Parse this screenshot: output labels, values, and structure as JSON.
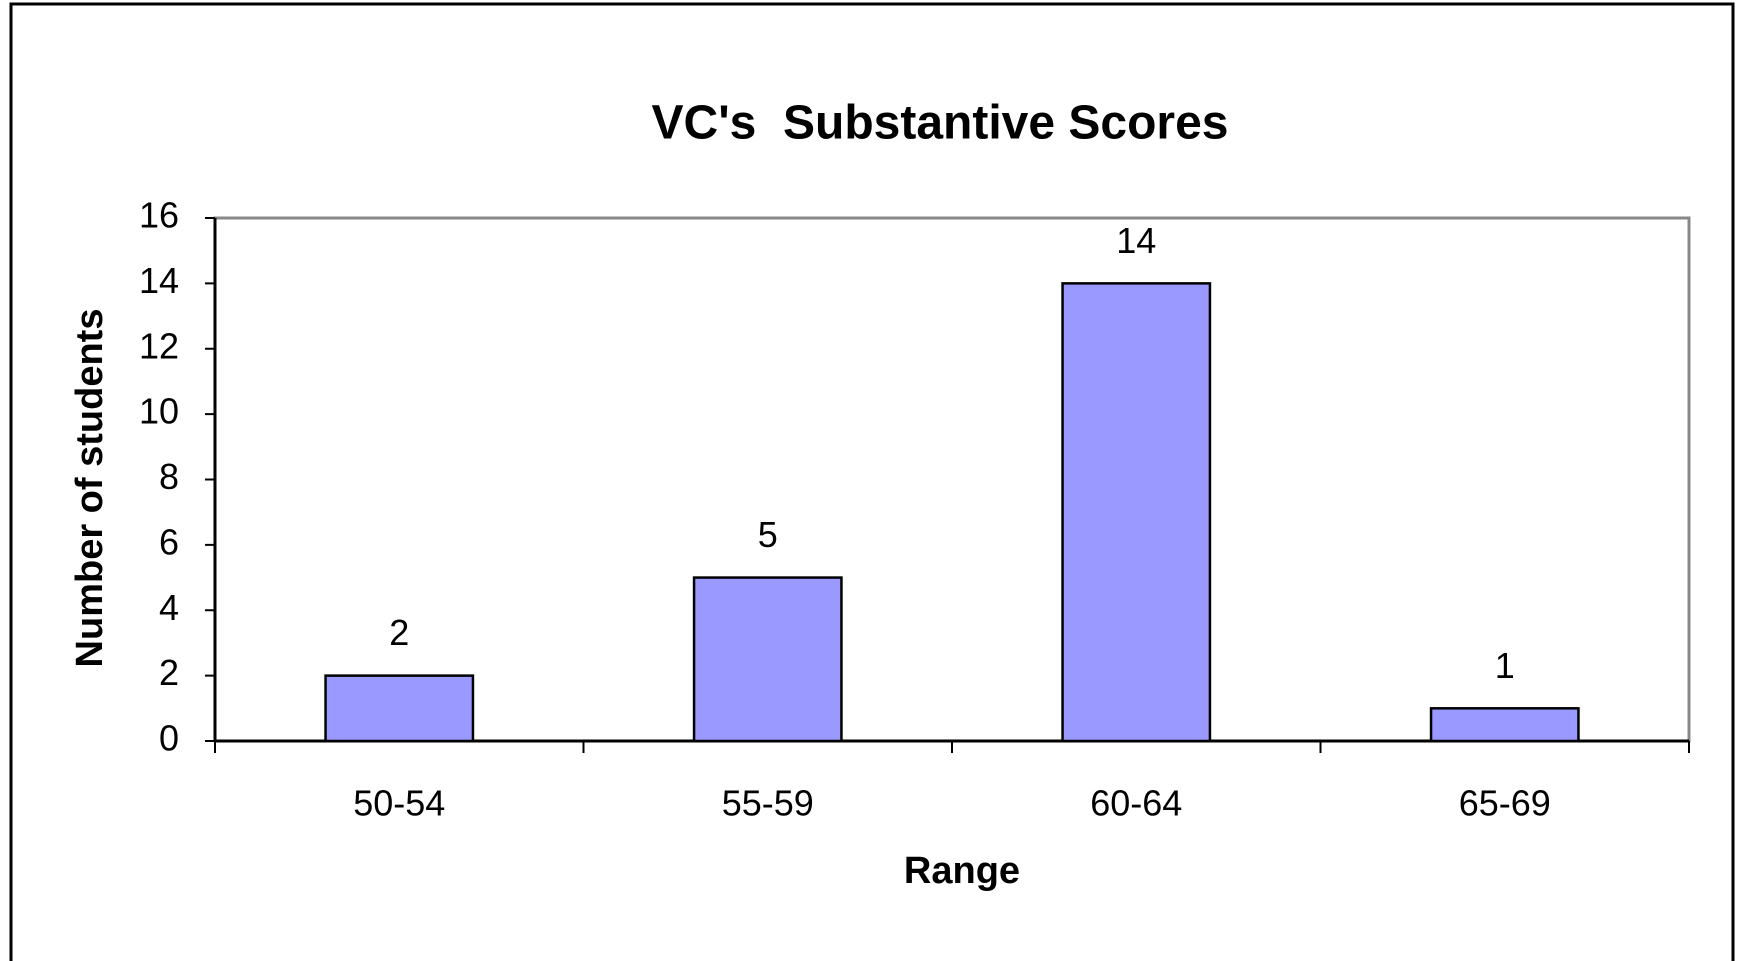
{
  "chart_data": {
    "type": "bar",
    "title": "VC's  Substantive Scores",
    "x_label": "Range",
    "y_label": "Number of students",
    "categories": [
      "50-54",
      "55-59",
      "60-64",
      "65-69"
    ],
    "values": [
      2,
      5,
      14,
      1
    ],
    "color": "#9999ff",
    "ylim": [
      0,
      16
    ],
    "yticks": [
      0,
      2,
      4,
      6,
      8,
      10,
      12,
      14,
      16
    ],
    "grid": false
  }
}
